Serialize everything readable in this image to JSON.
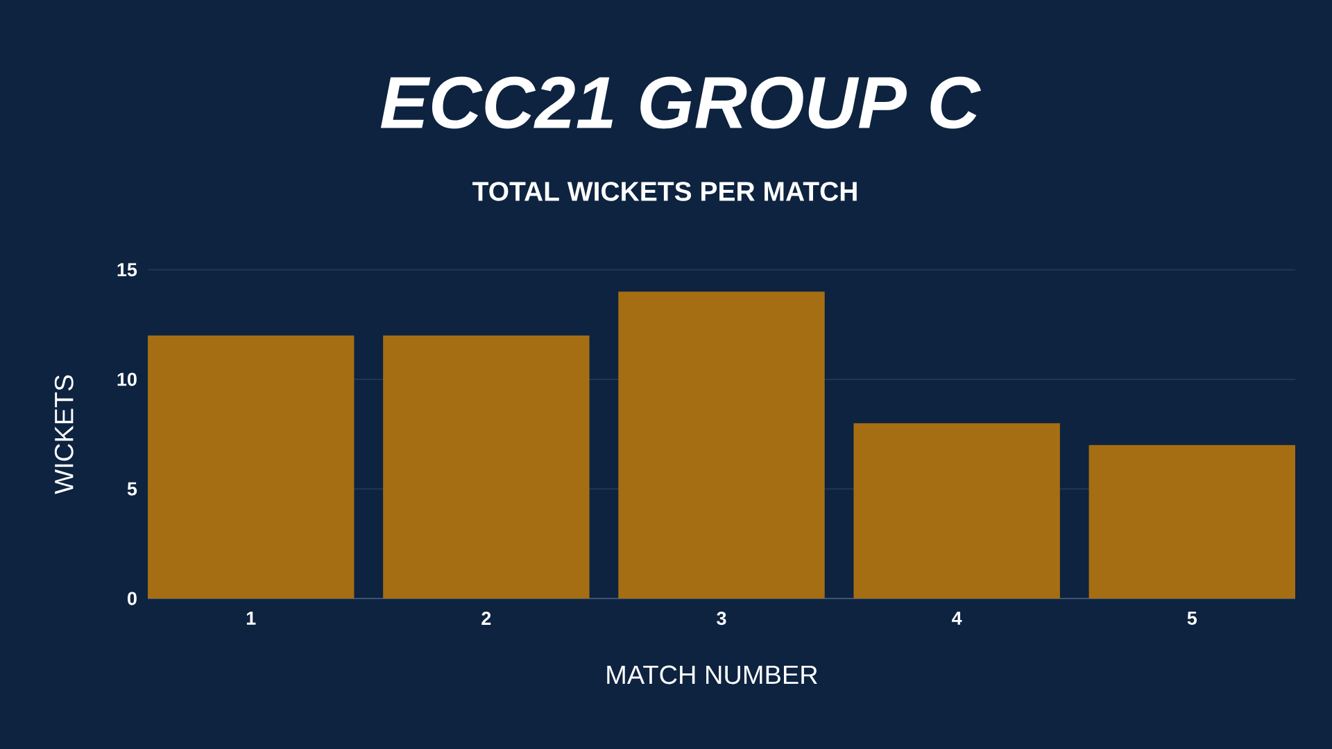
{
  "chart_data": {
    "type": "bar",
    "title": "ECC21 GROUP C",
    "subtitle": "TOTAL WICKETS PER MATCH",
    "xlabel": "MATCH NUMBER",
    "ylabel": "WICKETS",
    "categories": [
      "1",
      "2",
      "3",
      "4",
      "5"
    ],
    "values": [
      12,
      12,
      14,
      8,
      7
    ],
    "color": "#a66e12",
    "ylim": [
      0,
      15
    ],
    "yticks": [
      0,
      5,
      10,
      15
    ],
    "grid": "y"
  }
}
